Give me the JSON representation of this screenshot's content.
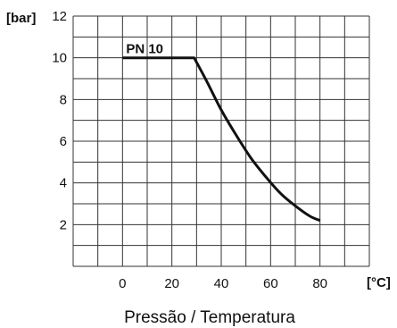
{
  "chart_data": {
    "type": "line",
    "title": "Pressão / Temperatura",
    "xlabel": "[°C]",
    "ylabel": "[bar]",
    "xlim": [
      -20,
      100
    ],
    "ylim": [
      0,
      12
    ],
    "x_grid_step": 10,
    "y_grid_step": 1,
    "xticks": [
      0,
      20,
      40,
      60,
      80
    ],
    "yticks": [
      2,
      4,
      6,
      8,
      10,
      12
    ],
    "grid": true,
    "series": [
      {
        "name": "PN 10",
        "x": [
          0,
          29,
          34,
          40,
          46,
          52,
          58,
          64,
          70,
          76,
          80
        ],
        "y": [
          10,
          10,
          8.9,
          7.5,
          6.3,
          5.2,
          4.3,
          3.5,
          2.9,
          2.4,
          2.2
        ]
      }
    ]
  },
  "colors": {
    "line": "#111111",
    "grid": "#333333",
    "background": "#ffffff"
  }
}
